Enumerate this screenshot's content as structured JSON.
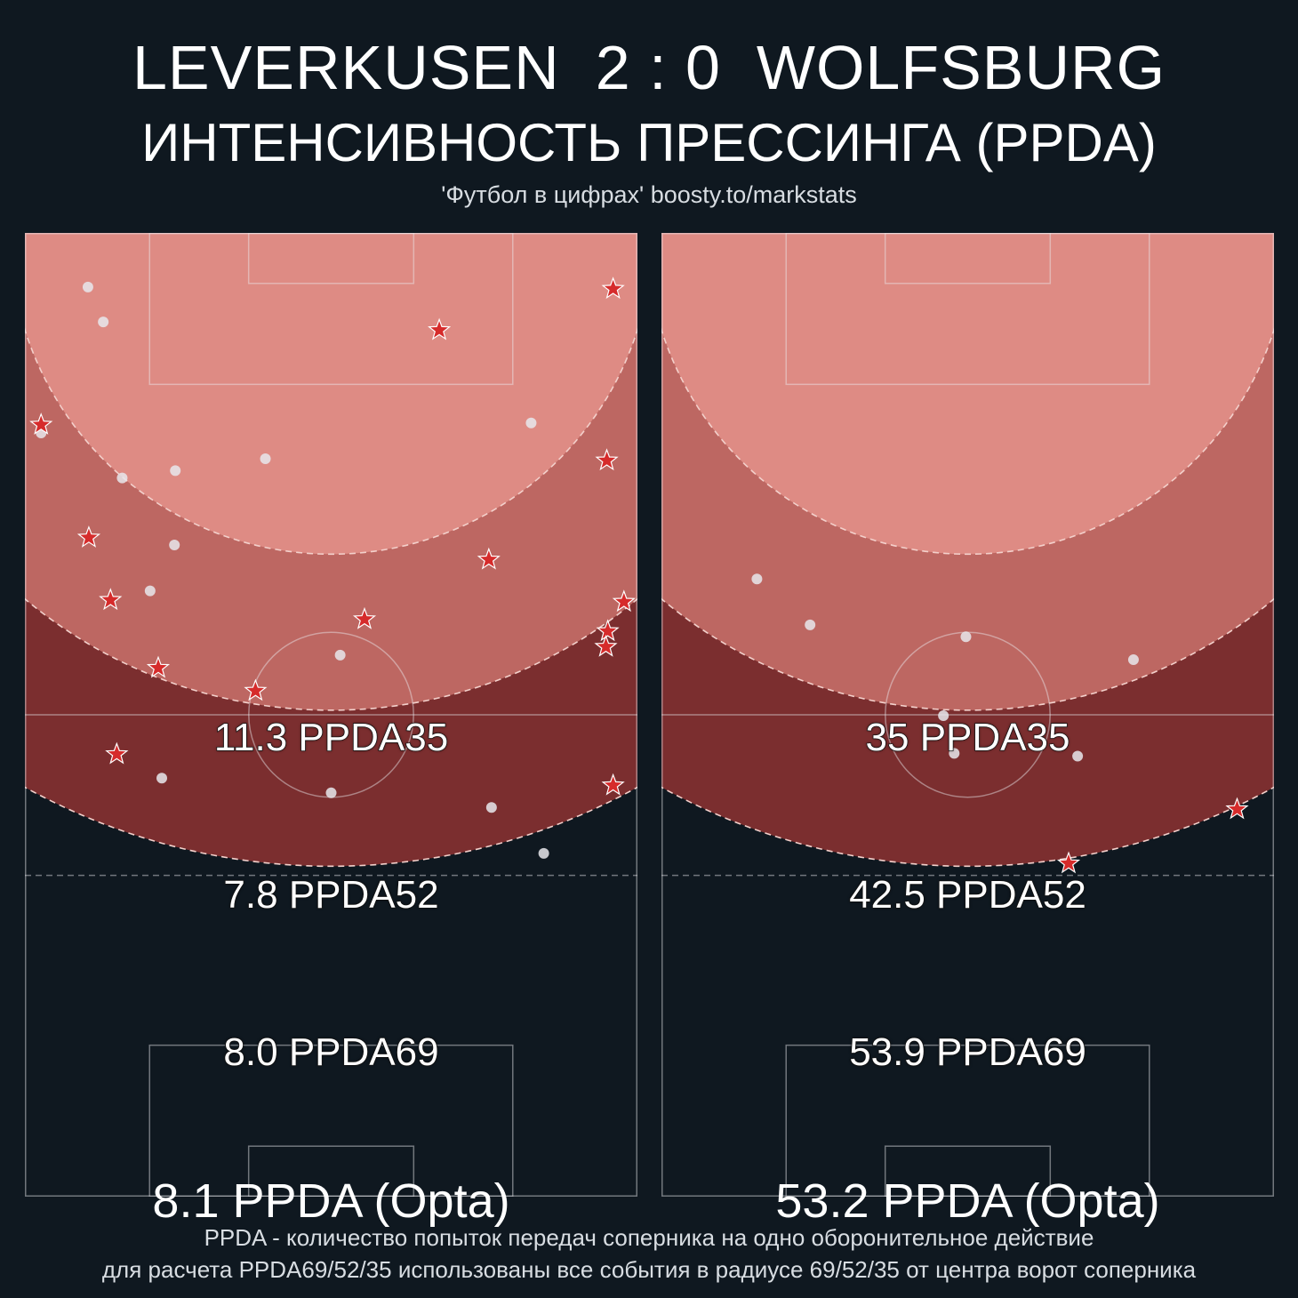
{
  "header": {
    "team_home": "LEVERKUSEN",
    "score": "2 : 0",
    "team_away": "WOLFSBURG",
    "subtitle": "ИНТЕНСИВНОСТЬ ПРЕССИНГА (PPDA)",
    "source": "'Футбол в цифрах' boosty.to/markstats"
  },
  "footer": {
    "line1": "PPDA - количество попыток передач соперника на одно оборонительное действие",
    "line2": "для расчета PPDA69/52/35 использованы все события в радиусе 69/52/35 от центра ворот соперника"
  },
  "colors": {
    "background": "#0f1820",
    "zone35": "#de8b84",
    "zone52": "#bd6762",
    "zone69": "#7b2e2f",
    "star": "#d62b2b"
  },
  "chart_data": [
    {
      "type": "scatter",
      "team": "LEVERKUSEN",
      "labels": {
        "ppda35": "11.3 PPDA35",
        "ppda52": "7.8 PPDA52",
        "ppda69": "8.0 PPDA69",
        "opta": "8.1 PPDA (Opta)"
      },
      "ppda35": 11.3,
      "ppda52": 7.8,
      "ppda69": 8.0,
      "ppda_opta": 8.1,
      "xlim": [
        0,
        68
      ],
      "ylim": [
        0,
        105
      ],
      "dots": [
        [
          7,
          99.1
        ],
        [
          8.7,
          95.3
        ],
        [
          1.8,
          83.2
        ],
        [
          10.8,
          78.3
        ],
        [
          16.7,
          79.1
        ],
        [
          26.7,
          80.4
        ],
        [
          56.2,
          84.3
        ],
        [
          16.6,
          71.0
        ],
        [
          13.9,
          66.0
        ],
        [
          35,
          59
        ],
        [
          15.2,
          45.6
        ],
        [
          34,
          44
        ],
        [
          51.8,
          42.4
        ],
        [
          57.6,
          37.4
        ]
      ],
      "stars": [
        [
          65.3,
          98.9
        ],
        [
          46,
          94.4
        ],
        [
          1.8,
          84.1
        ],
        [
          64.6,
          80.2
        ],
        [
          7.1,
          71.8
        ],
        [
          51.5,
          69.4
        ],
        [
          9.5,
          65.0
        ],
        [
          66.5,
          64.8
        ],
        [
          64.7,
          61.6
        ],
        [
          64.5,
          59.9
        ],
        [
          37.7,
          62.9
        ],
        [
          14.8,
          57.6
        ],
        [
          25.6,
          55.1
        ],
        [
          10.2,
          48.2
        ],
        [
          65.3,
          44.8
        ]
      ]
    },
    {
      "type": "scatter",
      "team": "WOLFSBURG",
      "labels": {
        "ppda35": "35 PPDA35",
        "ppda52": "42.5 PPDA52",
        "ppda69": "53.9 PPDA69",
        "opta": "53.2 PPDA (Opta)"
      },
      "ppda35": 35,
      "ppda52": 42.5,
      "ppda69": 53.9,
      "ppda_opta": 53.2,
      "xlim": [
        0,
        68
      ],
      "ylim": [
        0,
        105
      ],
      "dots": [
        [
          10.6,
          67.3
        ],
        [
          16.5,
          62.3
        ],
        [
          33.8,
          61.0
        ],
        [
          52.4,
          58.5
        ],
        [
          31.3,
          52.4
        ],
        [
          32.5,
          48.3
        ],
        [
          46.2,
          48.0
        ]
      ],
      "stars": [
        [
          63.9,
          42.2
        ],
        [
          45.2,
          36.3
        ]
      ]
    }
  ]
}
